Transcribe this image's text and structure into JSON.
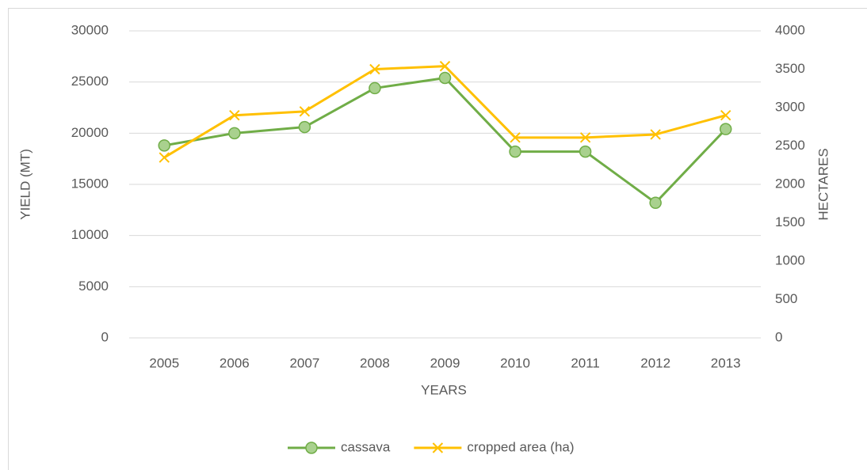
{
  "chart_data": {
    "type": "line",
    "categories": [
      "2005",
      "2006",
      "2007",
      "2008",
      "2009",
      "2010",
      "2011",
      "2012",
      "2013"
    ],
    "series": [
      {
        "name": "cassava",
        "color": "#70ad47",
        "marker": "circle",
        "values": [
          18800,
          20000,
          20600,
          24400,
          25400,
          18200,
          18200,
          13200,
          20400
        ]
      },
      {
        "name": "cropped area (ha)",
        "color": "#ffc000",
        "marker": "x",
        "axis": "y2",
        "values": [
          2350,
          2900,
          2950,
          3500,
          3540,
          2610,
          2610,
          2650,
          2900
        ]
      }
    ],
    "xlabel": "YEARS",
    "ylabel": "YIELD (MT)",
    "y2label": "HECTARES",
    "ylim": [
      0,
      30000
    ],
    "yticks": [
      0,
      5000,
      10000,
      15000,
      20000,
      25000,
      30000
    ],
    "y2lim": [
      0,
      4000
    ],
    "y2ticks": [
      0,
      500,
      1000,
      1500,
      2000,
      2500,
      3000,
      3500,
      4000
    ],
    "grid": true,
    "legend": "bottom"
  }
}
